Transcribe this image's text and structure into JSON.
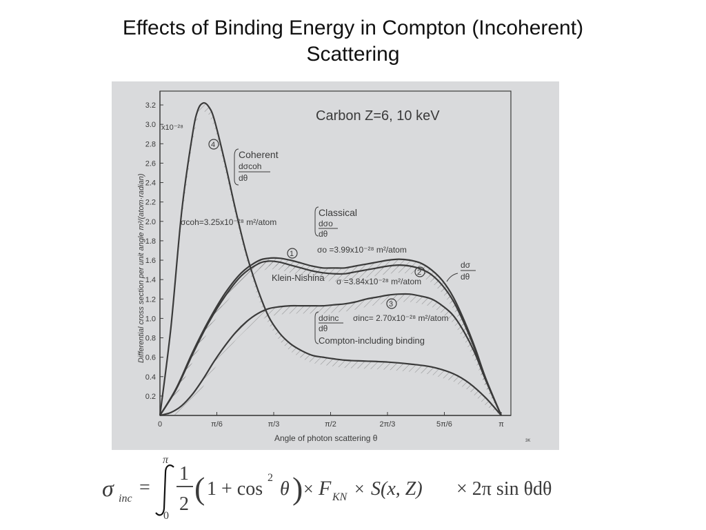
{
  "slide": {
    "title_line1": "Effects of Binding Energy in Compton (Incoherent)",
    "title_line2": "Scattering"
  },
  "colors": {
    "figure_background": "#d9dadc",
    "curve_ink": "#3a3a3a",
    "slide_background": "#ffffff"
  },
  "chart_data": {
    "type": "line",
    "title": "Carbon Z=6,  10 keV",
    "xlabel": "Angle of photon scattering θ",
    "ylabel": "Differential cross section per unit angle  m²/(atom·radian)",
    "x_unit": "radian",
    "xlim": [
      0,
      3.1416
    ],
    "ylim": [
      0,
      3.3
    ],
    "x_ticks": [
      {
        "value": 0,
        "label": "0"
      },
      {
        "value": 0.5236,
        "label": "π/6"
      },
      {
        "value": 1.0472,
        "label": "π/3"
      },
      {
        "value": 1.5708,
        "label": "π/2"
      },
      {
        "value": 2.0944,
        "label": "2π/3"
      },
      {
        "value": 2.618,
        "label": "5π/6"
      },
      {
        "value": 3.1416,
        "label": "π"
      }
    ],
    "y_ticks": [
      {
        "value": 0.2,
        "label": "0.2"
      },
      {
        "value": 0.4,
        "label": "0.4"
      },
      {
        "value": 0.6,
        "label": "0.6"
      },
      {
        "value": 0.8,
        "label": "0.8"
      },
      {
        "value": 1.0,
        "label": "1.0"
      },
      {
        "value": 1.2,
        "label": "1.2"
      },
      {
        "value": 1.4,
        "label": "1.4"
      },
      {
        "value": 1.6,
        "label": "1.6"
      },
      {
        "value": 1.8,
        "label": "1.8"
      },
      {
        "value": 2.0,
        "label": "2.0"
      },
      {
        "value": 2.2,
        "label": "2.2"
      },
      {
        "value": 2.4,
        "label": "2.4"
      },
      {
        "value": 2.6,
        "label": "2.6"
      },
      {
        "value": 2.8,
        "label": "2.8"
      },
      {
        "value": 3.0,
        "label": "3.0"
      },
      {
        "value": 3.2,
        "label": "3.2"
      }
    ],
    "y_scale_note": "x10⁻²⁸",
    "series": [
      {
        "name": "Coherent",
        "number": "4",
        "x": [
          0,
          0.1,
          0.2,
          0.3,
          0.35,
          0.4,
          0.45,
          0.5,
          0.6,
          0.7,
          0.8,
          0.9,
          1.0,
          1.1,
          1.2,
          1.3,
          1.4,
          1.5,
          1.7,
          1.9,
          2.1,
          2.3,
          2.5,
          2.7,
          2.85,
          3.0,
          3.1416
        ],
        "y": [
          0,
          0.9,
          2.1,
          2.9,
          3.15,
          3.22,
          3.18,
          3.05,
          2.6,
          2.1,
          1.65,
          1.3,
          1.02,
          0.85,
          0.74,
          0.67,
          0.62,
          0.6,
          0.57,
          0.56,
          0.55,
          0.53,
          0.5,
          0.43,
          0.33,
          0.18,
          0
        ]
      },
      {
        "name": "Classical",
        "number": "1",
        "x": [
          0,
          0.15,
          0.3,
          0.45,
          0.6,
          0.75,
          0.9,
          1.0,
          1.1,
          1.2,
          1.3,
          1.4,
          1.5,
          1.6,
          1.7,
          1.8,
          1.9,
          2.0,
          2.1,
          2.2,
          2.3,
          2.4,
          2.5,
          2.6,
          2.7,
          2.8,
          2.9,
          3.0,
          3.1416
        ],
        "y": [
          0,
          0.28,
          0.65,
          0.98,
          1.26,
          1.47,
          1.59,
          1.62,
          1.62,
          1.6,
          1.57,
          1.54,
          1.52,
          1.52,
          1.52,
          1.54,
          1.56,
          1.58,
          1.6,
          1.61,
          1.6,
          1.57,
          1.5,
          1.39,
          1.22,
          0.98,
          0.7,
          0.38,
          0
        ]
      },
      {
        "name": "Klein-Nishina",
        "number": "2",
        "x": [
          0,
          0.15,
          0.3,
          0.45,
          0.6,
          0.75,
          0.9,
          1.0,
          1.1,
          1.2,
          1.3,
          1.4,
          1.5,
          1.6,
          1.7,
          1.8,
          1.9,
          2.0,
          2.1,
          2.2,
          2.3,
          2.4,
          2.5,
          2.6,
          2.7,
          2.8,
          2.9,
          3.0,
          3.1416
        ],
        "y": [
          0,
          0.27,
          0.63,
          0.96,
          1.23,
          1.44,
          1.56,
          1.59,
          1.58,
          1.55,
          1.52,
          1.49,
          1.47,
          1.46,
          1.46,
          1.48,
          1.5,
          1.52,
          1.54,
          1.55,
          1.54,
          1.51,
          1.45,
          1.34,
          1.18,
          0.95,
          0.68,
          0.37,
          0
        ]
      },
      {
        "name": "Compton-including binding",
        "number": "3",
        "x": [
          0,
          0.1,
          0.2,
          0.3,
          0.4,
          0.5,
          0.6,
          0.7,
          0.8,
          0.9,
          1.0,
          1.1,
          1.2,
          1.3,
          1.4,
          1.5,
          1.6,
          1.7,
          1.8,
          1.9,
          2.0,
          2.1,
          2.2,
          2.3,
          2.4,
          2.5,
          2.6,
          2.7,
          2.8,
          2.9,
          3.0,
          3.1416
        ],
        "y": [
          0,
          0.03,
          0.1,
          0.22,
          0.38,
          0.56,
          0.72,
          0.86,
          0.97,
          1.05,
          1.1,
          1.12,
          1.13,
          1.13,
          1.13,
          1.13,
          1.14,
          1.15,
          1.17,
          1.2,
          1.22,
          1.24,
          1.25,
          1.25,
          1.23,
          1.2,
          1.13,
          1.03,
          0.86,
          0.64,
          0.36,
          0
        ]
      }
    ],
    "annotations": {
      "coherent_label": "Coherent",
      "coherent_deriv_num": "dσcoh",
      "coherent_deriv_den": "dθ",
      "coherent_total": "σcoh=3.25x10⁻²⁸ m²/atom",
      "classical_label": "Classical",
      "classical_deriv_num": "dσo",
      "classical_deriv_den": "dθ",
      "classical_total": "σo =3.99x10⁻²⁸ m²/atom",
      "kn_label": "Klein-Nishina",
      "kn_total": "σ =3.84x10⁻²⁸ m²/atom",
      "inc_deriv_num": "dσinc",
      "inc_deriv_den": "dθ",
      "inc_total": "σinc= 2.70x10⁻²⁸ m²/atom",
      "inc_label": "Compton-including binding",
      "side_deriv_num": "dσ",
      "side_deriv_den": "dθ",
      "corner_mark": "3K"
    }
  },
  "formula": {
    "lhs_symbol": "σ",
    "lhs_subscript": "inc",
    "equals": "=",
    "upper_limit": "π",
    "lower_limit": "0",
    "frac_num": "1",
    "frac_den": "2",
    "paren_open": "(",
    "one_plus": "1 + cos",
    "cos_power": "2",
    "theta": "θ",
    "paren_close": ")",
    "times1": "×",
    "f_symbol": "F",
    "f_subscript": "KN",
    "times2": "×",
    "s_function": "S(x, Z)",
    "times3": "× 2π sin θdθ"
  }
}
